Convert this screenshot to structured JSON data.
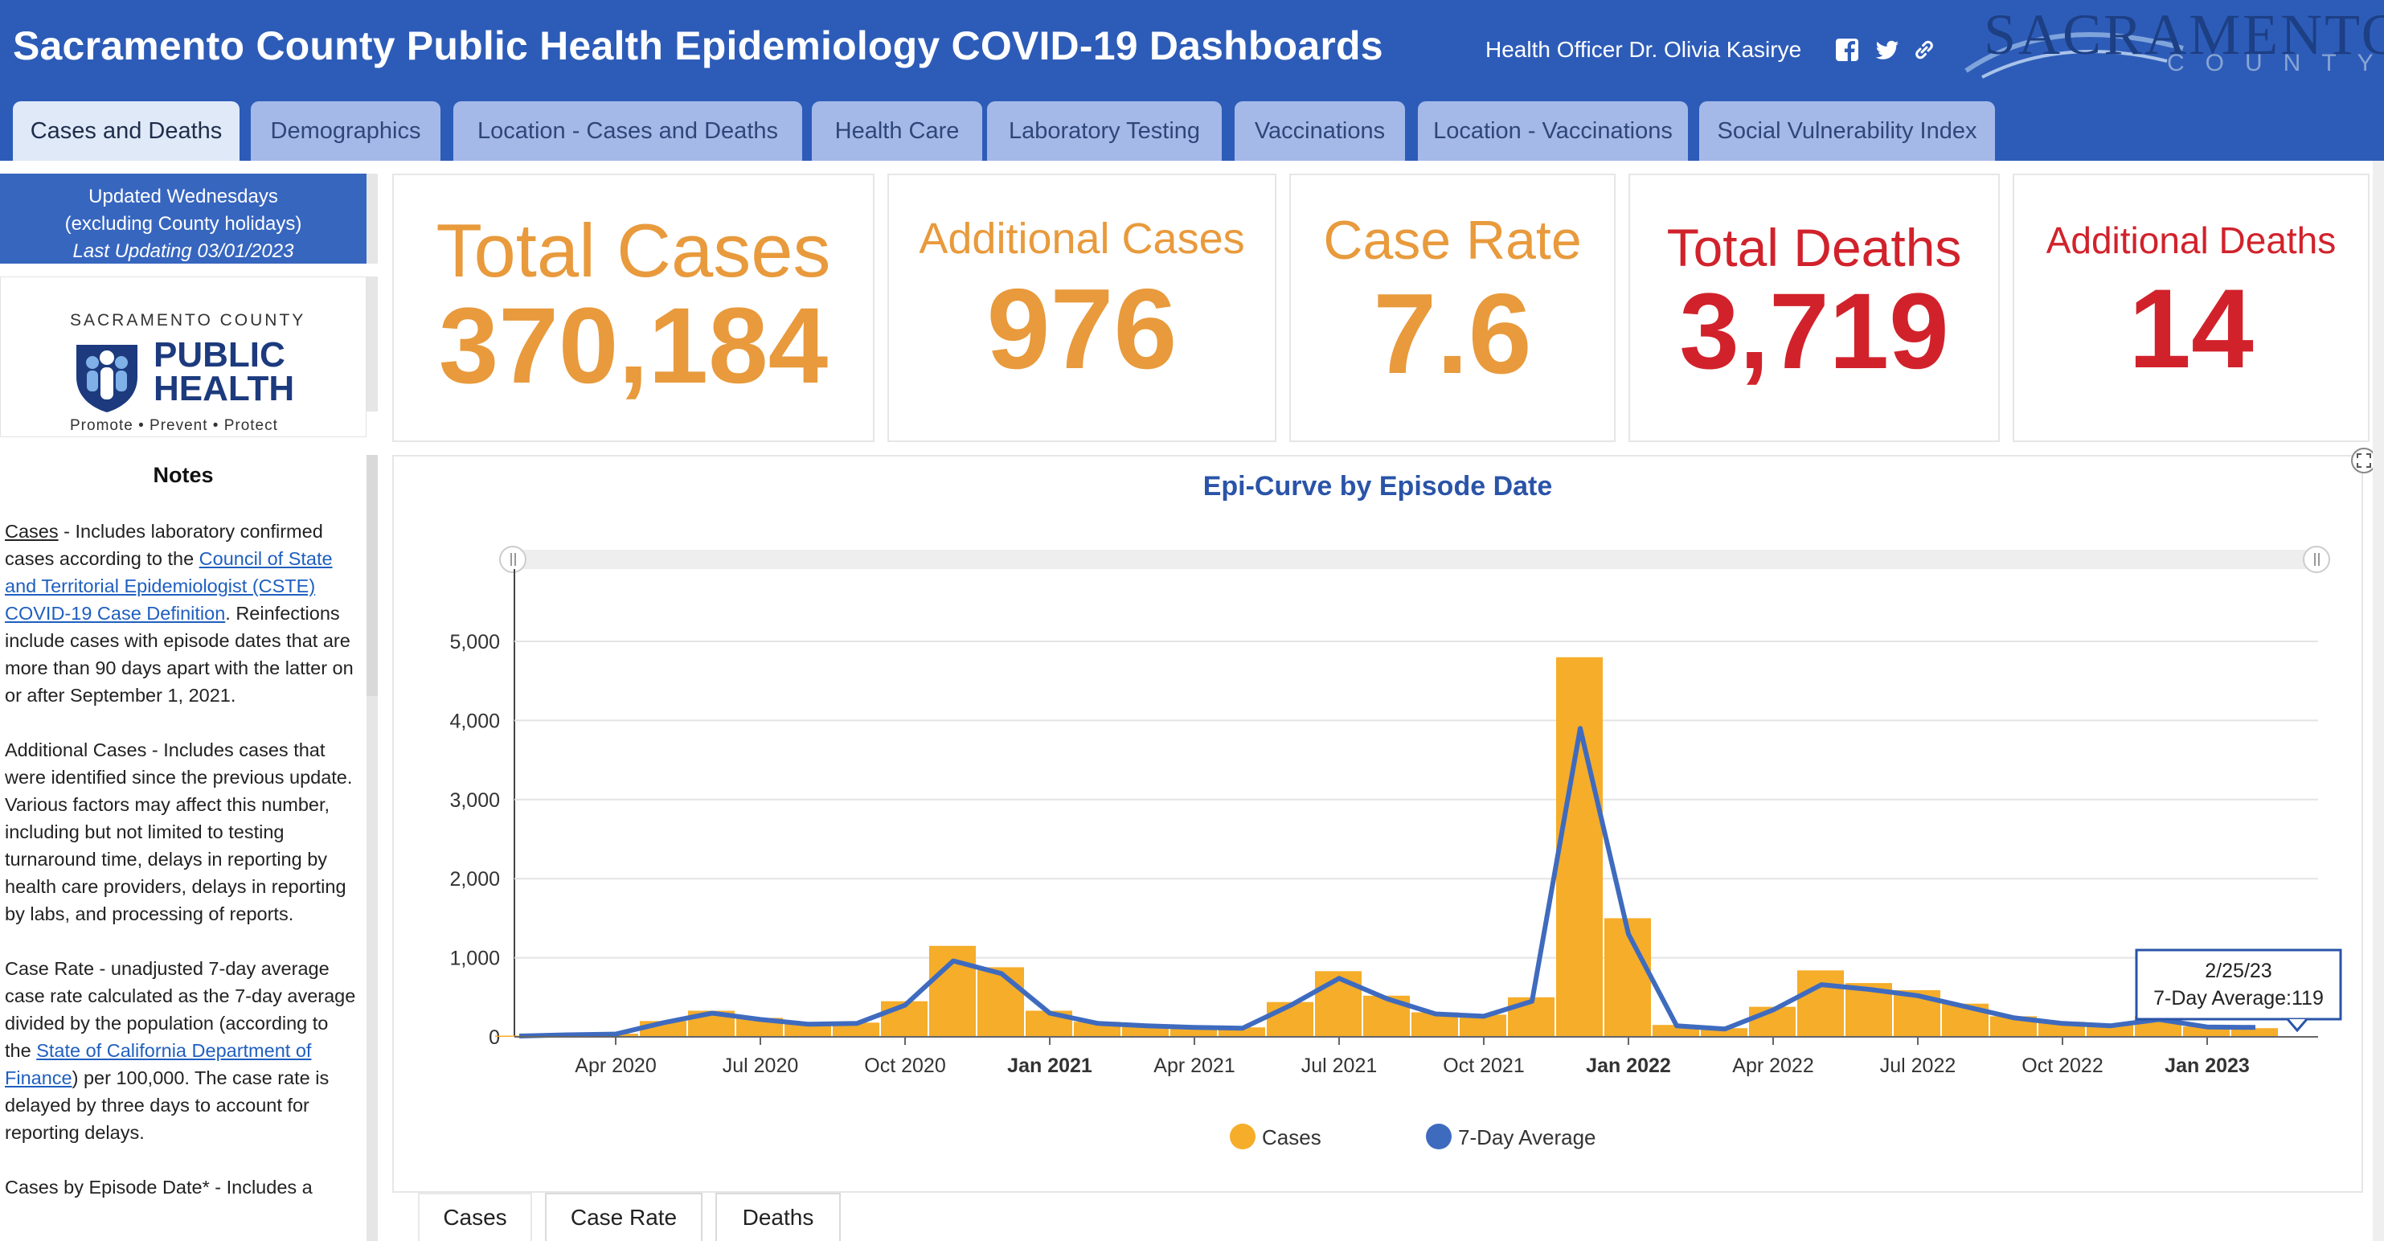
{
  "header": {
    "title": "Sacramento County Public Health Epidemiology COVID-19 Dashboards",
    "officer": "Health Officer Dr. Olivia Kasirye",
    "logo_word": "SACRAMENTO",
    "logo_sub": "COUNTY"
  },
  "tabs": [
    {
      "label": "Cases and Deaths"
    },
    {
      "label": "Demographics"
    },
    {
      "label": "Location - Cases and Deaths"
    },
    {
      "label": "Health Care"
    },
    {
      "label": "Laboratory Testing"
    },
    {
      "label": "Vaccinations"
    },
    {
      "label": "Location - Vaccinations"
    },
    {
      "label": "Social Vulnerability Index"
    }
  ],
  "sidebar": {
    "update_line1": "Updated Wednesdays",
    "update_line2": "(excluding County holidays)",
    "update_line3": "Last Updating 03/01/2023",
    "ph_county": "SACRAMENTO COUNTY",
    "ph_line1": "PUBLIC",
    "ph_line2": "HEALTH",
    "ph_tagline": "Promote  •  Prevent  •  Protect",
    "notes_title": "Notes",
    "notes": {
      "cases_term": "Cases",
      "cases_text1": " - Includes laboratory confirmed cases according to the ",
      "cases_link": "Council of State and Territorial Epidemiologist (CSTE) COVID-19 Case Definition",
      "cases_text2": ". Reinfections include cases with episode dates that are more than 90 days apart with the latter on or after September 1, 2021.",
      "additional": "Additional Cases - Includes cases that were identified since the previous update. Various factors may affect this number, including but not limited to testing turnaround time, delays in reporting by health care providers, delays in reporting by labs, and processing of reports.",
      "rate_text1": "Case Rate - unadjusted 7-day average case rate calculated as the 7-day average divided by the population (according to the ",
      "rate_link": "State of California Department of Finance",
      "rate_text2": ") per 100,000. The case rate is delayed by three days to account for reporting delays.",
      "episode": "Cases by Episode Date* - Includes a"
    }
  },
  "kpis": {
    "total_cases": {
      "label": "Total Cases",
      "value": "370,184",
      "color": "#e89a3c"
    },
    "additional_cases": {
      "label": "Additional Cases",
      "value": "976",
      "color": "#e89a3c"
    },
    "case_rate": {
      "label": "Case Rate",
      "value": "7.6",
      "color": "#e89a3c"
    },
    "total_deaths": {
      "label": "Total Deaths",
      "value": "3,719",
      "color": "#d1222b"
    },
    "additional_deaths": {
      "label": "Additional Deaths",
      "value": "14",
      "color": "#d1222b"
    }
  },
  "chart": {
    "title": "Epi-Curve by Episode Date",
    "tooltip_date": "2/25/23",
    "tooltip_value": "7-Day Average:119",
    "legend_cases": "Cases",
    "legend_avg": "7-Day Average"
  },
  "chart_data": {
    "type": "bar",
    "title": "Epi-Curve by Episode Date",
    "xlabel": "",
    "ylabel": "",
    "ylim": [
      0,
      5000
    ],
    "y_ticks": [
      "0",
      "1,000",
      "2,000",
      "3,000",
      "4,000",
      "5,000"
    ],
    "x_ticks": [
      "Apr 2020",
      "Jul 2020",
      "Oct 2020",
      "Jan 2021",
      "Apr 2021",
      "Jul 2021",
      "Oct 2021",
      "Jan 2022",
      "Apr 2022",
      "Jul 2022",
      "Oct 2022",
      "Jan 2023"
    ],
    "x_tick_bold": [
      false,
      false,
      false,
      true,
      false,
      false,
      false,
      true,
      false,
      false,
      false,
      true
    ],
    "series": [
      {
        "name": "Cases",
        "color": "#f5ad2a",
        "months": [
          0,
          1,
          2,
          3,
          4,
          5,
          6,
          7,
          8,
          9,
          10,
          11,
          12,
          13,
          14,
          15,
          16,
          17,
          18,
          19,
          20,
          21,
          22,
          23,
          24,
          25,
          26,
          27,
          28,
          29,
          30,
          31,
          32,
          33,
          34,
          35,
          36
        ],
        "values": [
          15,
          30,
          40,
          200,
          330,
          240,
          170,
          180,
          450,
          1150,
          880,
          330,
          190,
          150,
          130,
          120,
          440,
          830,
          520,
          310,
          280,
          500,
          4800,
          1500,
          150,
          110,
          380,
          840,
          680,
          590,
          420,
          260,
          190,
          150,
          260,
          130,
          110
        ]
      },
      {
        "name": "7-Day Average",
        "color": "#3f6bbf",
        "months": [
          0,
          1,
          2,
          3,
          4,
          5,
          6,
          7,
          8,
          9,
          10,
          11,
          12,
          13,
          14,
          15,
          16,
          17,
          18,
          19,
          20,
          21,
          22,
          23,
          24,
          25,
          26,
          27,
          28,
          29,
          30,
          31,
          32,
          33,
          34,
          35,
          36
        ],
        "values": [
          10,
          25,
          35,
          180,
          300,
          220,
          160,
          170,
          400,
          960,
          800,
          300,
          170,
          140,
          120,
          110,
          400,
          740,
          480,
          290,
          260,
          450,
          3900,
          1300,
          140,
          100,
          340,
          660,
          600,
          520,
          380,
          240,
          170,
          140,
          220,
          125,
          119
        ]
      }
    ]
  },
  "bottom_tabs": [
    {
      "label": "Cases"
    },
    {
      "label": "Case Rate"
    },
    {
      "label": "Deaths"
    }
  ]
}
